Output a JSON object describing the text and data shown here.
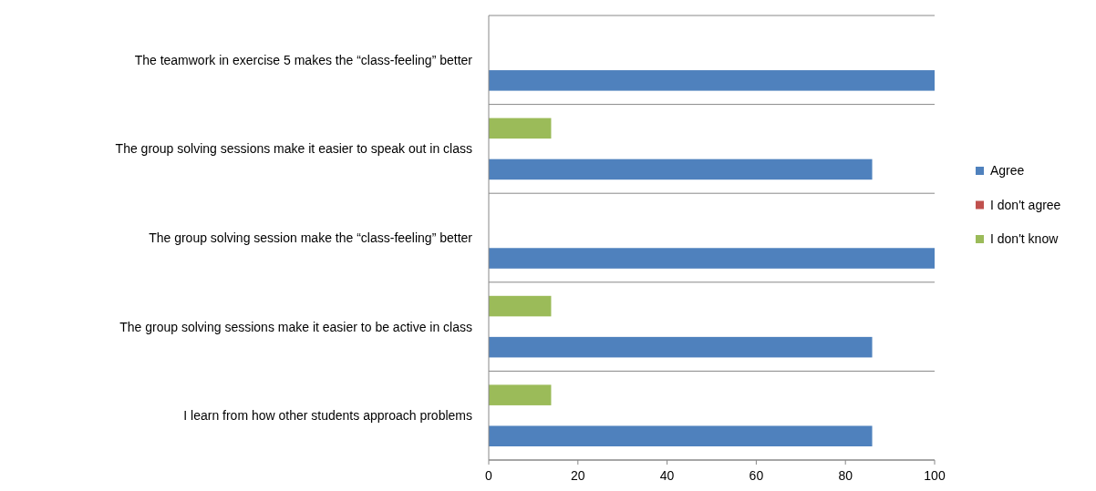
{
  "chart_data": {
    "type": "bar",
    "orientation": "horizontal",
    "categories": [
      "The teamwork in exercise 5 makes the “class-feeling” better",
      "The group solving sessions make it easier to speak out in class",
      "The group solving session make the “class-feeling” better",
      "The group solving sessions make it easier to be active in class ",
      "I learn from how other students approach problems"
    ],
    "series": [
      {
        "name": "Agree",
        "color": "#4f81bd",
        "values": [
          100,
          86,
          100,
          86,
          86
        ]
      },
      {
        "name": "I don't agree",
        "color": "#c0504d",
        "values": [
          0,
          0,
          0,
          0,
          0
        ]
      },
      {
        "name": "I don't know",
        "color": "#9bbb59",
        "values": [
          0,
          14,
          0,
          14,
          14
        ]
      }
    ],
    "xlim": [
      0,
      100
    ],
    "xticks": [
      0,
      20,
      40,
      60,
      80,
      100
    ],
    "grid": "y",
    "legend": "right"
  }
}
